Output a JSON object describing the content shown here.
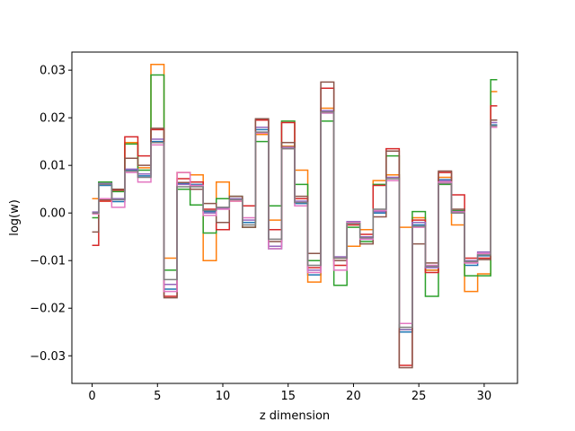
{
  "chart_data": {
    "type": "line",
    "drawstyle": "steps-mid",
    "title": "",
    "xlabel": "z dimension",
    "ylabel": "log(w)",
    "xlim": [
      -1.55,
      32.55
    ],
    "ylim": [
      -0.0358,
      0.0338
    ],
    "xticks": [
      0,
      5,
      10,
      15,
      20,
      25,
      30
    ],
    "yticks": [
      -0.03,
      -0.02,
      -0.01,
      0.0,
      0.01,
      0.02,
      0.03
    ],
    "ytick_labels": [
      "−0.03",
      "−0.02",
      "−0.01",
      "0.00",
      "0.01",
      "0.02",
      "0.03"
    ],
    "grid": false,
    "legend": "none",
    "x": [
      0,
      1,
      2,
      3,
      4,
      5,
      6,
      7,
      8,
      9,
      10,
      11,
      12,
      13,
      14,
      15,
      16,
      17,
      18,
      19,
      20,
      21,
      22,
      23,
      24,
      25,
      26,
      27,
      28,
      29,
      30,
      31
    ],
    "series": [
      {
        "color": "#1f77b4",
        "values": [
          0.0,
          0.0058,
          0.0024,
          0.009,
          0.0078,
          0.015,
          -0.016,
          0.0062,
          0.006,
          0.0003,
          0.0011,
          0.003,
          -0.002,
          0.0175,
          -0.0075,
          0.014,
          0.002,
          -0.013,
          0.021,
          -0.01,
          -0.002,
          -0.0055,
          0.0,
          0.008,
          -0.025,
          -0.0025,
          -0.012,
          0.007,
          0.0,
          -0.011,
          -0.009,
          0.0185
        ]
      },
      {
        "color": "#ff7f0e",
        "values": [
          0.003,
          0.0025,
          0.005,
          0.0148,
          0.0095,
          0.0312,
          -0.0095,
          0.0085,
          0.008,
          -0.01,
          0.0065,
          0.0025,
          0.0015,
          0.0165,
          -0.0015,
          0.014,
          0.009,
          -0.0145,
          0.022,
          -0.0095,
          -0.007,
          -0.0035,
          0.0068,
          0.008,
          -0.003,
          -0.001,
          -0.012,
          0.0075,
          -0.0025,
          -0.0165,
          -0.0128,
          0.0255
        ]
      },
      {
        "color": "#2ca02c",
        "values": [
          -0.001,
          0.0065,
          0.0045,
          0.0145,
          0.009,
          0.029,
          -0.012,
          0.005,
          0.0017,
          -0.0042,
          0.003,
          0.0035,
          -0.003,
          0.015,
          0.0015,
          0.0193,
          0.006,
          -0.01,
          0.0193,
          -0.0152,
          -0.003,
          -0.006,
          0.006,
          0.012,
          -0.0245,
          0.0003,
          -0.0175,
          0.006,
          0.0005,
          -0.0132,
          -0.0132,
          0.028
        ]
      },
      {
        "color": "#d62728",
        "values": [
          -0.0068,
          0.0025,
          0.0048,
          0.016,
          0.012,
          0.0175,
          -0.0175,
          0.0072,
          0.0065,
          0.0008,
          -0.0035,
          0.003,
          0.0015,
          0.0195,
          -0.0035,
          0.019,
          0.003,
          -0.0115,
          0.0262,
          -0.011,
          -0.0025,
          -0.0045,
          0.0058,
          0.0135,
          -0.032,
          -0.0015,
          -0.0125,
          0.0085,
          0.0038,
          -0.0095,
          -0.0095,
          0.0225
        ]
      },
      {
        "color": "#9467bd",
        "values": [
          0.0002,
          0.0062,
          0.003,
          0.0092,
          0.0082,
          0.0155,
          -0.015,
          0.006,
          0.0058,
          0.0,
          0.001,
          0.003,
          -0.0015,
          0.018,
          -0.007,
          0.0138,
          0.0025,
          -0.012,
          0.0215,
          -0.0092,
          -0.0018,
          -0.005,
          0.0003,
          0.0075,
          -0.0245,
          -0.002,
          -0.0115,
          0.0068,
          0.0003,
          -0.01,
          -0.0082,
          0.019
        ]
      },
      {
        "color": "#8c564b",
        "values": [
          -0.004,
          0.0028,
          0.005,
          0.0115,
          0.01,
          0.0178,
          -0.0178,
          0.0064,
          0.005,
          0.002,
          -0.002,
          0.0035,
          -0.003,
          0.0198,
          -0.006,
          0.0148,
          0.0035,
          -0.0085,
          0.0275,
          -0.01,
          -0.002,
          -0.0065,
          -0.0008,
          0.013,
          -0.0325,
          -0.0065,
          -0.0105,
          0.0088,
          0.0008,
          -0.0105,
          -0.0098,
          0.0195
        ]
      },
      {
        "color": "#e377c2",
        "values": [
          -0.0002,
          0.003,
          0.0012,
          0.0085,
          0.0065,
          0.0143,
          -0.0165,
          0.0085,
          0.0058,
          -0.0005,
          0.0008,
          0.0025,
          -0.001,
          0.0168,
          -0.0075,
          0.0135,
          0.0015,
          -0.0125,
          0.021,
          -0.012,
          -0.002,
          -0.0055,
          0.0005,
          0.0068,
          -0.0232,
          -0.003,
          -0.011,
          0.0065,
          0.0002,
          -0.0105,
          -0.0085,
          0.018
        ]
      },
      {
        "color": "#7f7f7f",
        "values": [
          0.0,
          0.006,
          0.0028,
          0.0088,
          0.0075,
          0.0148,
          -0.014,
          0.0055,
          0.0055,
          0.0005,
          0.0012,
          0.0028,
          -0.0025,
          0.017,
          -0.0055,
          0.0135,
          0.0022,
          -0.011,
          0.0212,
          -0.0095,
          -0.0022,
          -0.0052,
          0.0008,
          0.0072,
          -0.024,
          -0.0028,
          -0.0112,
          0.0062,
          0.0,
          -0.0102,
          -0.0088,
          0.0183
        ]
      }
    ]
  }
}
